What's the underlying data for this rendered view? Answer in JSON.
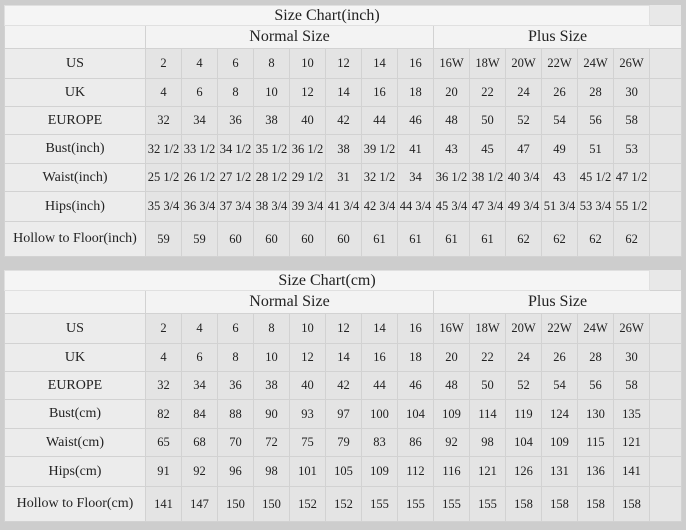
{
  "tables": [
    {
      "title": "Size Chart(inch)",
      "normal_label": "Normal Size",
      "plus_label": "Plus Size",
      "rows": [
        {
          "label": "US",
          "normal": [
            "2",
            "4",
            "6",
            "8",
            "10",
            "12",
            "14",
            "16"
          ],
          "plus": [
            "16W",
            "18W",
            "20W",
            "22W",
            "24W",
            "26W"
          ]
        },
        {
          "label": "UK",
          "normal": [
            "4",
            "6",
            "8",
            "10",
            "12",
            "14",
            "16",
            "18"
          ],
          "plus": [
            "20",
            "22",
            "24",
            "26",
            "28",
            "30"
          ]
        },
        {
          "label": "EUROPE",
          "normal": [
            "32",
            "34",
            "36",
            "38",
            "40",
            "42",
            "44",
            "46"
          ],
          "plus": [
            "48",
            "50",
            "52",
            "54",
            "56",
            "58"
          ]
        },
        {
          "label": "Bust(inch)",
          "normal": [
            "32 1/2",
            "33 1/2",
            "34 1/2",
            "35 1/2",
            "36 1/2",
            "38",
            "39 1/2",
            "41"
          ],
          "plus": [
            "43",
            "45",
            "47",
            "49",
            "51",
            "53"
          ]
        },
        {
          "label": "Waist(inch)",
          "normal": [
            "25 1/2",
            "26 1/2",
            "27 1/2",
            "28 1/2",
            "29 1/2",
            "31",
            "32 1/2",
            "34"
          ],
          "plus": [
            "36 1/2",
            "38 1/2",
            "40 3/4",
            "43",
            "45 1/2",
            "47 1/2"
          ]
        },
        {
          "label": "Hips(inch)",
          "normal": [
            "35 3/4",
            "36 3/4",
            "37 3/4",
            "38 3/4",
            "39 3/4",
            "41 3/4",
            "42 3/4",
            "44 3/4"
          ],
          "plus": [
            "45 3/4",
            "47 3/4",
            "49 3/4",
            "51 3/4",
            "53 3/4",
            "55 1/2"
          ]
        },
        {
          "label": "Hollow to Floor(inch)",
          "normal": [
            "59",
            "59",
            "60",
            "60",
            "60",
            "60",
            "61",
            "61"
          ],
          "plus": [
            "61",
            "61",
            "62",
            "62",
            "62",
            "62"
          ]
        }
      ]
    },
    {
      "title": "Size Chart(cm)",
      "normal_label": "Normal Size",
      "plus_label": "Plus Size",
      "rows": [
        {
          "label": "US",
          "normal": [
            "2",
            "4",
            "6",
            "8",
            "10",
            "12",
            "14",
            "16"
          ],
          "plus": [
            "16W",
            "18W",
            "20W",
            "22W",
            "24W",
            "26W"
          ]
        },
        {
          "label": "UK",
          "normal": [
            "4",
            "6",
            "8",
            "10",
            "12",
            "14",
            "16",
            "18"
          ],
          "plus": [
            "20",
            "22",
            "24",
            "26",
            "28",
            "30"
          ]
        },
        {
          "label": "EUROPE",
          "normal": [
            "32",
            "34",
            "36",
            "38",
            "40",
            "42",
            "44",
            "46"
          ],
          "plus": [
            "48",
            "50",
            "52",
            "54",
            "56",
            "58"
          ]
        },
        {
          "label": "Bust(cm)",
          "normal": [
            "82",
            "84",
            "88",
            "90",
            "93",
            "97",
            "100",
            "104"
          ],
          "plus": [
            "109",
            "114",
            "119",
            "124",
            "130",
            "135"
          ]
        },
        {
          "label": "Waist(cm)",
          "normal": [
            "65",
            "68",
            "70",
            "72",
            "75",
            "79",
            "83",
            "86"
          ],
          "plus": [
            "92",
            "98",
            "104",
            "109",
            "115",
            "121"
          ]
        },
        {
          "label": "Hips(cm)",
          "normal": [
            "91",
            "92",
            "96",
            "98",
            "101",
            "105",
            "109",
            "112"
          ],
          "plus": [
            "116",
            "121",
            "126",
            "131",
            "136",
            "141"
          ]
        },
        {
          "label": "Hollow to Floor(cm)",
          "normal": [
            "141",
            "147",
            "150",
            "150",
            "152",
            "152",
            "155",
            "155"
          ],
          "plus": [
            "155",
            "155",
            "158",
            "158",
            "158",
            "158"
          ]
        }
      ]
    }
  ]
}
